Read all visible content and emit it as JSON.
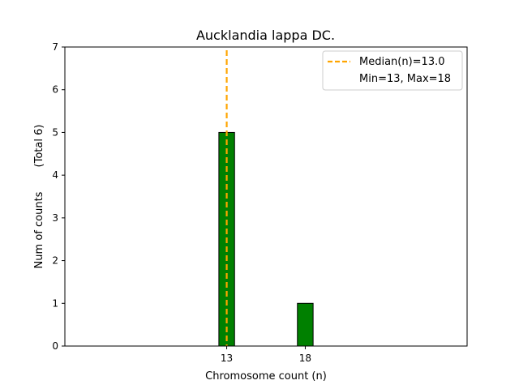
{
  "chart_data": {
    "type": "bar",
    "title": "Aucklandia lappa DC.",
    "xlabel": "Chromosome count (n)",
    "ylabel": "Num of counts",
    "ylabel_total": "(Total 6)",
    "xlim": [
      2.7,
      28.3
    ],
    "ylim": [
      0,
      7
    ],
    "x_ticks": [
      13,
      18
    ],
    "y_ticks": [
      0,
      1,
      2,
      3,
      4,
      5,
      6,
      7
    ],
    "bar_width": 1,
    "bars": [
      {
        "x": 13,
        "value": 5
      },
      {
        "x": 18,
        "value": 1
      }
    ],
    "bar_color": "#008000",
    "bar_edge_color": "#000000",
    "median": 13.0,
    "median_color": "#FFA500",
    "legend": {
      "position": "top-right",
      "entries": [
        "Median(n)=13.0",
        "Min=13, Max=18"
      ]
    },
    "baseline_extent": [
      2.7,
      21.5
    ]
  }
}
